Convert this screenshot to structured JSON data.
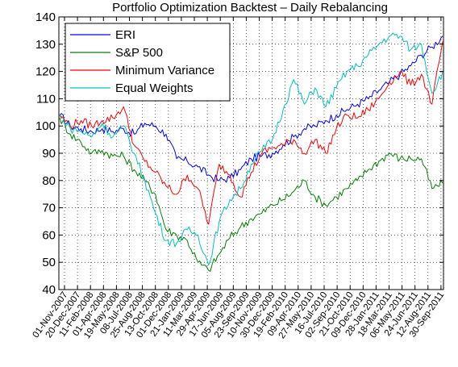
{
  "chart_data": {
    "type": "line",
    "title": "Portfolio Optimization Backtest – Daily Rebalancing",
    "xlabel": "",
    "ylabel": "",
    "ylim": [
      40,
      140
    ],
    "yticks": [
      40,
      50,
      60,
      70,
      80,
      90,
      100,
      110,
      120,
      130,
      140
    ],
    "grid": true,
    "grid_style": "dotted",
    "legend_position": "top-left",
    "x_tick_labels": [
      "01-Nov-2007",
      "20-Dec-2007",
      "11-Feb-2008",
      "01-Apr-2008",
      "19-May-2008",
      "08-Jul-2008",
      "25-Aug-2008",
      "13-Oct-2008",
      "01-Dec-2008",
      "21-Jan-2009",
      "11-Mar-2009",
      "29-Apr-2009",
      "17-Jun-2009",
      "05-Aug-2009",
      "23-Sep-2009",
      "10-Nov-2009",
      "30-Dec-2009",
      "19-Feb-2010",
      "09-Apr-2010",
      "27-May-2010",
      "16-Jul-2010",
      "02-Sep-2010",
      "21-Oct-2010",
      "09-Dec-2010",
      "28-Jan-2011",
      "18-Mar-2011",
      "06-May-2011",
      "24-Jun-2011",
      "12-Aug-2011",
      "30-Sep-2011"
    ],
    "series": [
      {
        "name": "ERI",
        "color": "#0000ff",
        "values": [
          104,
          100,
          99,
          98,
          99,
          98,
          99,
          97,
          101,
          100,
          97,
          88,
          87,
          85,
          82,
          80,
          81,
          84,
          88,
          89,
          90,
          93,
          96,
          99,
          100,
          102,
          104,
          106,
          108,
          110,
          113,
          116,
          119,
          122,
          126,
          129,
          133
        ]
      },
      {
        "name": "S&P 500",
        "color": "#008000",
        "values": [
          103,
          97,
          94,
          90,
          91,
          89,
          89,
          84,
          80,
          75,
          62,
          60,
          58,
          50,
          47,
          53,
          59,
          63,
          66,
          68,
          71,
          73,
          76,
          80,
          74,
          71,
          74,
          77,
          80,
          84,
          87,
          90,
          88,
          88,
          88,
          77,
          79
        ]
      },
      {
        "name": "Minimum Variance",
        "color": "#ff0000",
        "values": [
          104,
          100,
          102,
          100,
          102,
          103,
          107,
          93,
          87,
          83,
          78,
          75,
          82,
          77,
          64,
          86,
          82,
          74,
          83,
          90,
          92,
          93,
          95,
          90,
          95,
          90,
          99,
          104,
          103,
          106,
          110,
          116,
          120,
          115,
          119,
          108,
          131
        ]
      },
      {
        "name": "Equal Weights",
        "color": "#00c0c0",
        "values": [
          104,
          99,
          98,
          96,
          101,
          96,
          100,
          90,
          80,
          68,
          58,
          57,
          62,
          60,
          49,
          65,
          73,
          77,
          86,
          91,
          95,
          106,
          117,
          108,
          114,
          107,
          114,
          120,
          122,
          126,
          130,
          133,
          133,
          128,
          130,
          112,
          120
        ]
      }
    ]
  }
}
